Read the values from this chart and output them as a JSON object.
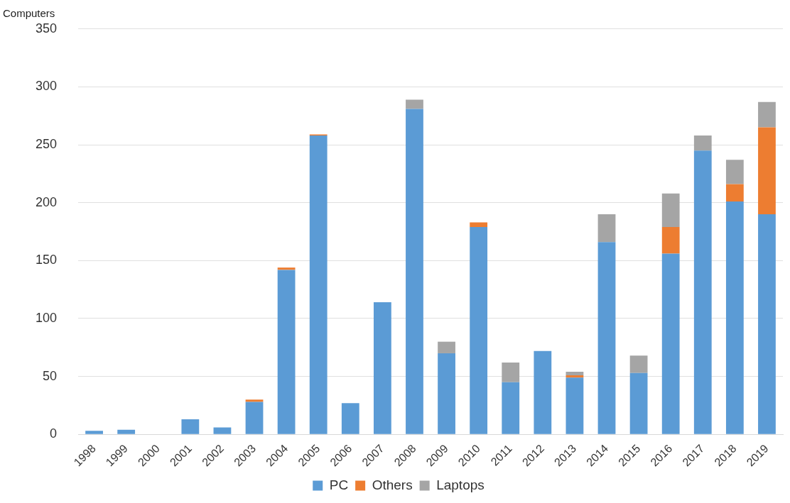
{
  "chart_data": {
    "type": "bar",
    "ylabel": "Computers",
    "stacked": true,
    "categories": [
      "1998",
      "1999",
      "2000",
      "2001",
      "2002",
      "2003",
      "2004",
      "2005",
      "2006",
      "2007",
      "2008",
      "2009",
      "2010",
      "2011",
      "2012",
      "2013",
      "2014",
      "2015",
      "2016",
      "2017",
      "2018",
      "2019"
    ],
    "series": [
      {
        "name": "PC",
        "color": "#5b9bd5",
        "values": [
          3,
          4,
          0,
          13,
          6,
          28,
          142,
          258,
          27,
          114,
          281,
          70,
          179,
          45,
          72,
          49,
          166,
          53,
          156,
          245,
          201,
          190
        ]
      },
      {
        "name": "Others",
        "color": "#ed7d31",
        "values": [
          0,
          0,
          0,
          0,
          0,
          2,
          2,
          1,
          0,
          0,
          0,
          0,
          4,
          0,
          0,
          2,
          0,
          0,
          23,
          0,
          15,
          75
        ]
      },
      {
        "name": "Laptops",
        "color": "#a5a5a5",
        "values": [
          0,
          0,
          0,
          0,
          0,
          0,
          0,
          0,
          0,
          0,
          8,
          10,
          0,
          17,
          0,
          3,
          24,
          15,
          29,
          13,
          21,
          22
        ]
      }
    ],
    "ylim": [
      0,
      350
    ],
    "yticks": [
      0,
      50,
      100,
      150,
      200,
      250,
      300,
      350
    ],
    "grid": "y",
    "legend": "bottom"
  }
}
